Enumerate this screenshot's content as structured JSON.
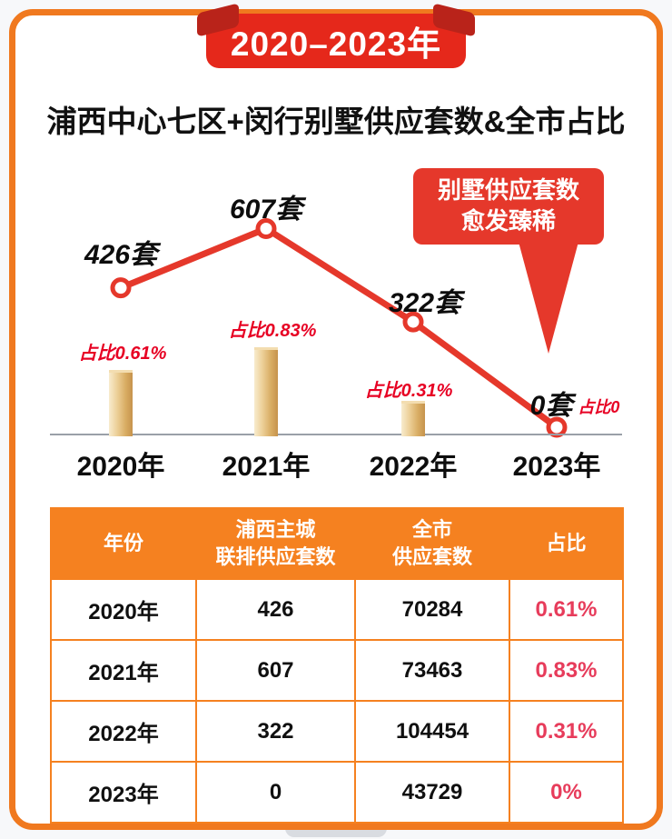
{
  "banner": {
    "label": "2020–2023年"
  },
  "title": "浦西中心七区+闵行别墅供应套数&全市占比",
  "callout": {
    "line1": "别墅供应套数",
    "line2": "愈发臻稀"
  },
  "chart_data": {
    "type": "line",
    "title": "浦西中心七区+闵行别墅供应套数&全市占比",
    "categories": [
      "2020年",
      "2021年",
      "2022年",
      "2023年"
    ],
    "series": [
      {
        "name": "别墅供应套数",
        "type": "line",
        "values": [
          426,
          607,
          322,
          0
        ]
      },
      {
        "name": "全市占比%",
        "type": "bar",
        "values": [
          0.61,
          0.83,
          0.31,
          0
        ]
      }
    ],
    "point_labels": [
      "426套",
      "607套",
      "322套",
      "0套"
    ],
    "pct_labels": [
      "占比0.61%",
      "占比0.83%",
      "占比0.31%",
      "占比0"
    ],
    "annotation": "别墅供应套数愈发臻稀",
    "ylim": [
      0,
      700
    ],
    "legend": "none",
    "grid": "off",
    "colors": {
      "line": "#e5382b",
      "bar_light": "#f8ecce",
      "bar_dark": "#c6934c",
      "pct_text": "#e70023",
      "frame": "#f0791f",
      "table_header": "#f58120",
      "table_pct": "#e73c5b",
      "ribbon": "#e5281b"
    }
  },
  "table": {
    "headers": [
      "年份",
      "浦西主城\n联排供应套数",
      "全市\n供应套数",
      "占比"
    ],
    "rows": [
      [
        "2020年",
        "426",
        "70284",
        "0.61%"
      ],
      [
        "2021年",
        "607",
        "73463",
        "0.83%"
      ],
      [
        "2022年",
        "322",
        "104454",
        "0.31%"
      ],
      [
        "2023年",
        "0",
        "43729",
        "0%"
      ]
    ]
  }
}
